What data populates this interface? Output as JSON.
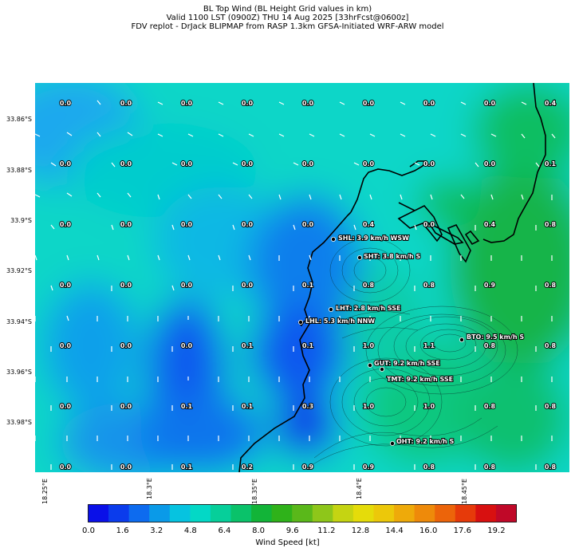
{
  "title_lines": [
    "BL Top Wind (BL Height Grid values in km)",
    "Valid 1100 LST (0900Z) THU 14 Aug 2025 [33hrFcst@0600z]",
    "FDV replot - DrJack BLIPMAP from RASP 1.3km GFSA-Initiated WRF-ARW model"
  ],
  "y_ticks": [
    "33.86°S",
    "33.88°S",
    "33.9°S",
    "33.92°S",
    "33.94°S",
    "33.96°S",
    "33.98°S"
  ],
  "x_ticks": [
    "18.25°E",
    "18.3°E",
    "18.35°E",
    "18.4°E",
    "18.45°E"
  ],
  "grid_values": [
    [
      "0.0",
      "0.0",
      "0.0",
      "0.0",
      "0.0",
      "0.0",
      "0.0",
      "0.0",
      "0.4"
    ],
    [
      "0.0",
      "0.0",
      "0.0",
      "0.0",
      "0.0",
      "0.0",
      "0.0",
      "0.0",
      "0.1"
    ],
    [
      "0.0",
      "0.0",
      "0.0",
      "0.0",
      "0.0",
      "0.4",
      "0.0",
      "0.4",
      "0.8"
    ],
    [
      "0.0",
      "0.0",
      "0.0",
      "0.0",
      "0.1",
      "0.8",
      "0.8",
      "0.9",
      "0.8"
    ],
    [
      "0.0",
      "0.0",
      "0.0",
      "0.1",
      "0.1",
      "1.0",
      "1.1",
      "0.8",
      "0.8"
    ],
    [
      "0.0",
      "0.0",
      "0.1",
      "0.1",
      "0.3",
      "1.0",
      "1.0",
      "0.8",
      "0.8"
    ],
    [
      "0.0",
      "0.0",
      "0.1",
      "0.2",
      "0.9",
      "0.9",
      "0.8",
      "0.8",
      "0.8"
    ]
  ],
  "stations": [
    {
      "label": "SHL: 3.9 km/h WSW"
    },
    {
      "label": "SHT: 3.8 km/h S"
    },
    {
      "label": "LHT: 2.8 km/h SSE"
    },
    {
      "label": "LHL: 5.3 km/h NNW"
    },
    {
      "label": "BTO: 9.5 km/h S"
    },
    {
      "label": "GUT: 9.2 km/h SSE"
    },
    {
      "label": "TMT: 9.2 km/h SSE"
    },
    {
      "label": "OHT: 9.2 km/h S"
    }
  ],
  "colorbar": {
    "title": "Wind Speed [kt]",
    "ticks": [
      "0.0",
      "1.6",
      "3.2",
      "4.8",
      "6.4",
      "8.0",
      "9.6",
      "11.2",
      "12.8",
      "14.4",
      "16.0",
      "17.6",
      "19.2"
    ],
    "colors": [
      "#0a10e8",
      "#0b3cec",
      "#0d6bef",
      "#0a9ae8",
      "#06c3e0",
      "#03d8c6",
      "#06cf9a",
      "#0ac26a",
      "#12b438",
      "#2fb21a",
      "#5ab81a",
      "#8ec61a",
      "#c5d412",
      "#e5dc0a",
      "#ecc80a",
      "#eeaa0a",
      "#ee8a0a",
      "#ec640a",
      "#e63a0a",
      "#d81010",
      "#c00828"
    ]
  }
}
